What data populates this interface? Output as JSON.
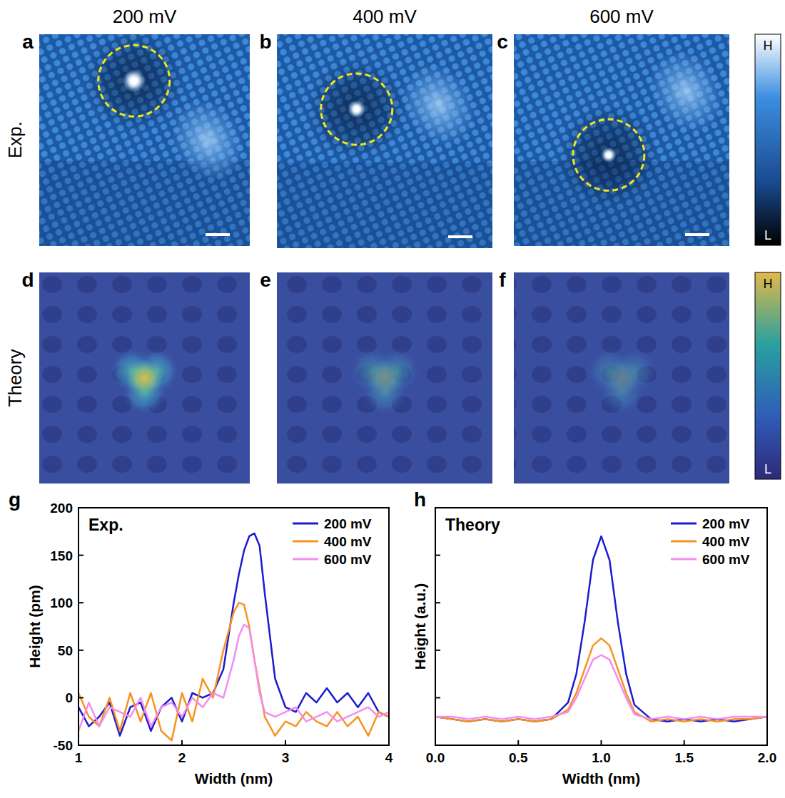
{
  "images": {
    "panel_letters": [
      "a",
      "b",
      "c",
      "d",
      "e",
      "f"
    ],
    "biases": [
      "200 mV",
      "400 mV",
      "600 mV"
    ],
    "row_labels": [
      "Exp.",
      "Theory"
    ],
    "colorbar_labels": {
      "high": "H",
      "low": "L"
    }
  },
  "chart_data": [
    {
      "type": "line",
      "label": "g",
      "title": "Exp.",
      "x_label": "Width (nm)",
      "y_label": "Height (pm)",
      "x": [
        1.0,
        1.1,
        1.2,
        1.3,
        1.4,
        1.5,
        1.6,
        1.7,
        1.8,
        1.9,
        2.0,
        2.1,
        2.2,
        2.3,
        2.4,
        2.5,
        2.55,
        2.6,
        2.65,
        2.7,
        2.75,
        2.8,
        2.9,
        3.0,
        3.1,
        3.2,
        3.3,
        3.4,
        3.5,
        3.6,
        3.7,
        3.8,
        3.9,
        4.0
      ],
      "series": [
        {
          "name": "200 mV",
          "color": "#1c1cd0",
          "values": [
            -10,
            -30,
            -20,
            -5,
            -40,
            -10,
            -5,
            -35,
            -10,
            0,
            -25,
            5,
            0,
            5,
            30,
            100,
            130,
            155,
            170,
            173,
            160,
            110,
            20,
            -10,
            -15,
            5,
            -5,
            10,
            -5,
            5,
            -10,
            5,
            -15,
            -20
          ]
        },
        {
          "name": "400 mV",
          "color": "#f7931e",
          "values": [
            5,
            -20,
            -30,
            0,
            -35,
            5,
            -25,
            5,
            -35,
            -45,
            5,
            -25,
            20,
            0,
            50,
            90,
            100,
            98,
            75,
            40,
            10,
            -20,
            -40,
            -25,
            -30,
            -15,
            -25,
            -30,
            -15,
            -30,
            -20,
            -40,
            -15,
            -20
          ]
        },
        {
          "name": "600 mV",
          "color": "#f58cf0",
          "values": [
            -35,
            -5,
            -30,
            -10,
            -15,
            -20,
            0,
            -30,
            -10,
            -5,
            -20,
            0,
            -10,
            5,
            0,
            40,
            65,
            77,
            73,
            40,
            5,
            -15,
            -20,
            -15,
            -10,
            -25,
            -20,
            -15,
            -25,
            -20,
            -15,
            -10,
            -20,
            -15
          ]
        }
      ],
      "xlim": [
        1,
        4
      ],
      "xticks": [
        1,
        2,
        3,
        4
      ],
      "ylim": [
        -50,
        200
      ],
      "yticks": [
        -50,
        0,
        50,
        100,
        150,
        200
      ],
      "legend": "upper right",
      "grid": false,
      "tick_labels": true
    },
    {
      "type": "line",
      "label": "h",
      "title": "Theory",
      "x_label": "Width (nm)",
      "y_label": "Height (a.u.)",
      "x": [
        0.0,
        0.1,
        0.2,
        0.3,
        0.4,
        0.5,
        0.6,
        0.7,
        0.8,
        0.85,
        0.9,
        0.95,
        1.0,
        1.05,
        1.1,
        1.15,
        1.2,
        1.3,
        1.4,
        1.5,
        1.6,
        1.7,
        1.8,
        1.9,
        2.0
      ],
      "series": [
        {
          "name": "200 mV",
          "color": "#1c1cd0",
          "values": [
            0.12,
            0.11,
            0.1,
            0.11,
            0.1,
            0.11,
            0.1,
            0.11,
            0.18,
            0.3,
            0.52,
            0.78,
            0.88,
            0.78,
            0.52,
            0.3,
            0.17,
            0.11,
            0.1,
            0.11,
            0.1,
            0.11,
            0.1,
            0.11,
            0.12
          ]
        },
        {
          "name": "400 mV",
          "color": "#f7931e",
          "values": [
            0.12,
            0.11,
            0.1,
            0.11,
            0.1,
            0.11,
            0.1,
            0.11,
            0.15,
            0.22,
            0.32,
            0.42,
            0.45,
            0.42,
            0.32,
            0.22,
            0.14,
            0.1,
            0.11,
            0.1,
            0.11,
            0.1,
            0.11,
            0.11,
            0.12
          ]
        },
        {
          "name": "600 mV",
          "color": "#f58cf0",
          "values": [
            0.12,
            0.12,
            0.11,
            0.12,
            0.11,
            0.12,
            0.11,
            0.12,
            0.14,
            0.2,
            0.28,
            0.36,
            0.38,
            0.36,
            0.28,
            0.2,
            0.13,
            0.11,
            0.12,
            0.11,
            0.12,
            0.11,
            0.12,
            0.12,
            0.12
          ]
        }
      ],
      "xlim": [
        0,
        2
      ],
      "xticks": [
        {
          "value": 0,
          "label": "0.0"
        },
        {
          "value": 0.5,
          "label": "0.5"
        },
        {
          "value": 1,
          "label": "1.0"
        },
        {
          "value": 1.5,
          "label": "1.5"
        },
        {
          "value": 2,
          "label": "2.0"
        }
      ],
      "ylim": [
        0,
        1
      ],
      "yticks": [
        0,
        0.2,
        0.4,
        0.6,
        0.8,
        1
      ],
      "legend": "upper right",
      "grid": false,
      "tick_labels": "x"
    }
  ]
}
